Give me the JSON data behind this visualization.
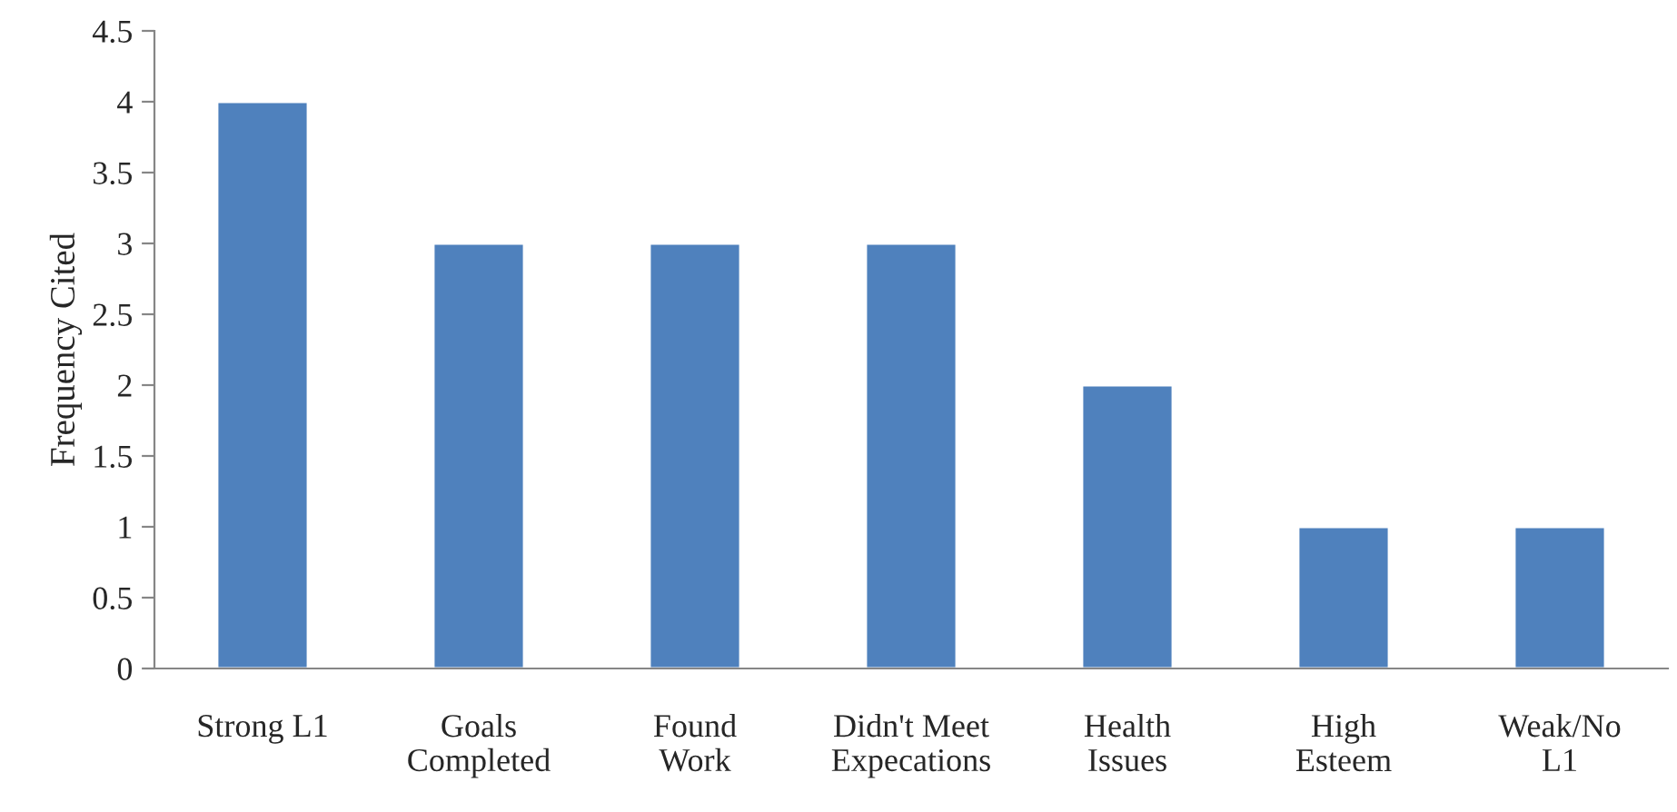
{
  "chart_data": {
    "type": "bar",
    "ylabel": "Frequency Cited",
    "categories": [
      "Strong L1",
      "Goals\nCompleted",
      "Found\nWork",
      "Didn't Meet\nExpecations",
      "Health\nIssues",
      "High\nEsteem",
      "Weak/No\nL1"
    ],
    "values": [
      4,
      3,
      3,
      3,
      2,
      1,
      1
    ],
    "color": "#4f81bd",
    "ylim": [
      0,
      4.5
    ],
    "yticks": [
      0,
      0.5,
      1,
      1.5,
      2,
      2.5,
      3,
      3.5,
      4,
      4.5
    ],
    "grid": false,
    "legend": false
  }
}
